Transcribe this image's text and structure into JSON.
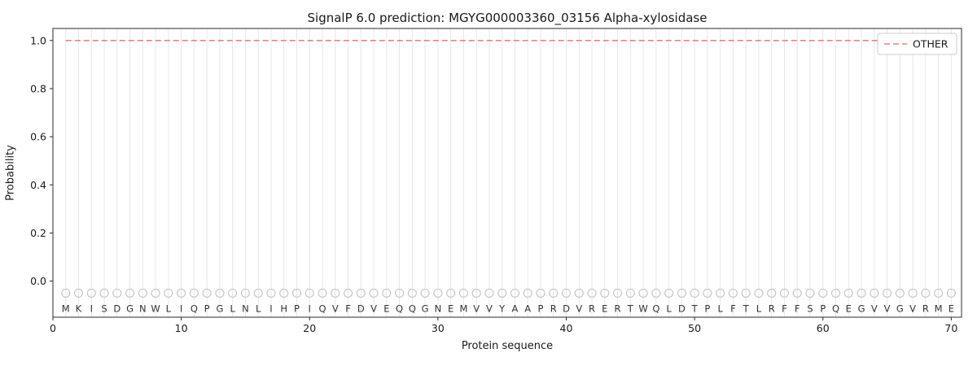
{
  "chart_data": {
    "type": "line",
    "title": "SignalP 6.0 prediction: MGYG000003360_03156 Alpha-xylosidase",
    "xlabel": "Protein sequence",
    "ylabel": "Probability",
    "xlim": [
      0,
      70.8
    ],
    "ylim": [
      -0.15,
      1.05
    ],
    "xticks": [
      0,
      10,
      20,
      30,
      40,
      50,
      60,
      70
    ],
    "yticks": [
      "0.0",
      "0.2",
      "0.4",
      "0.6",
      "0.8",
      "1.0"
    ],
    "sequence": "MKISDGNWLIQPGLNLIHPIQVFDVEQQGNEMVVYAAPRDVRERTWQLDTPLFTLRFFSPQEGVVGVRME",
    "series": [
      {
        "name": "OTHER",
        "style": "dashed",
        "color": "#f08080",
        "x_range": [
          1,
          70
        ],
        "y_constant": 1.0
      }
    ],
    "legend": {
      "position": "upper right",
      "entries": [
        {
          "label": "OTHER",
          "color": "#f08080",
          "dash": true
        }
      ]
    },
    "grid": {
      "vertical_per_residue": true,
      "color": "#e7e7e7"
    },
    "markers": {
      "circle_y": -0.05,
      "letter_y": -0.115,
      "circle_color": "#c8c8c8",
      "letter_color": "#333333"
    },
    "axis_color": "#2b2b2b",
    "tick_label_color": "#1a1a1a"
  }
}
